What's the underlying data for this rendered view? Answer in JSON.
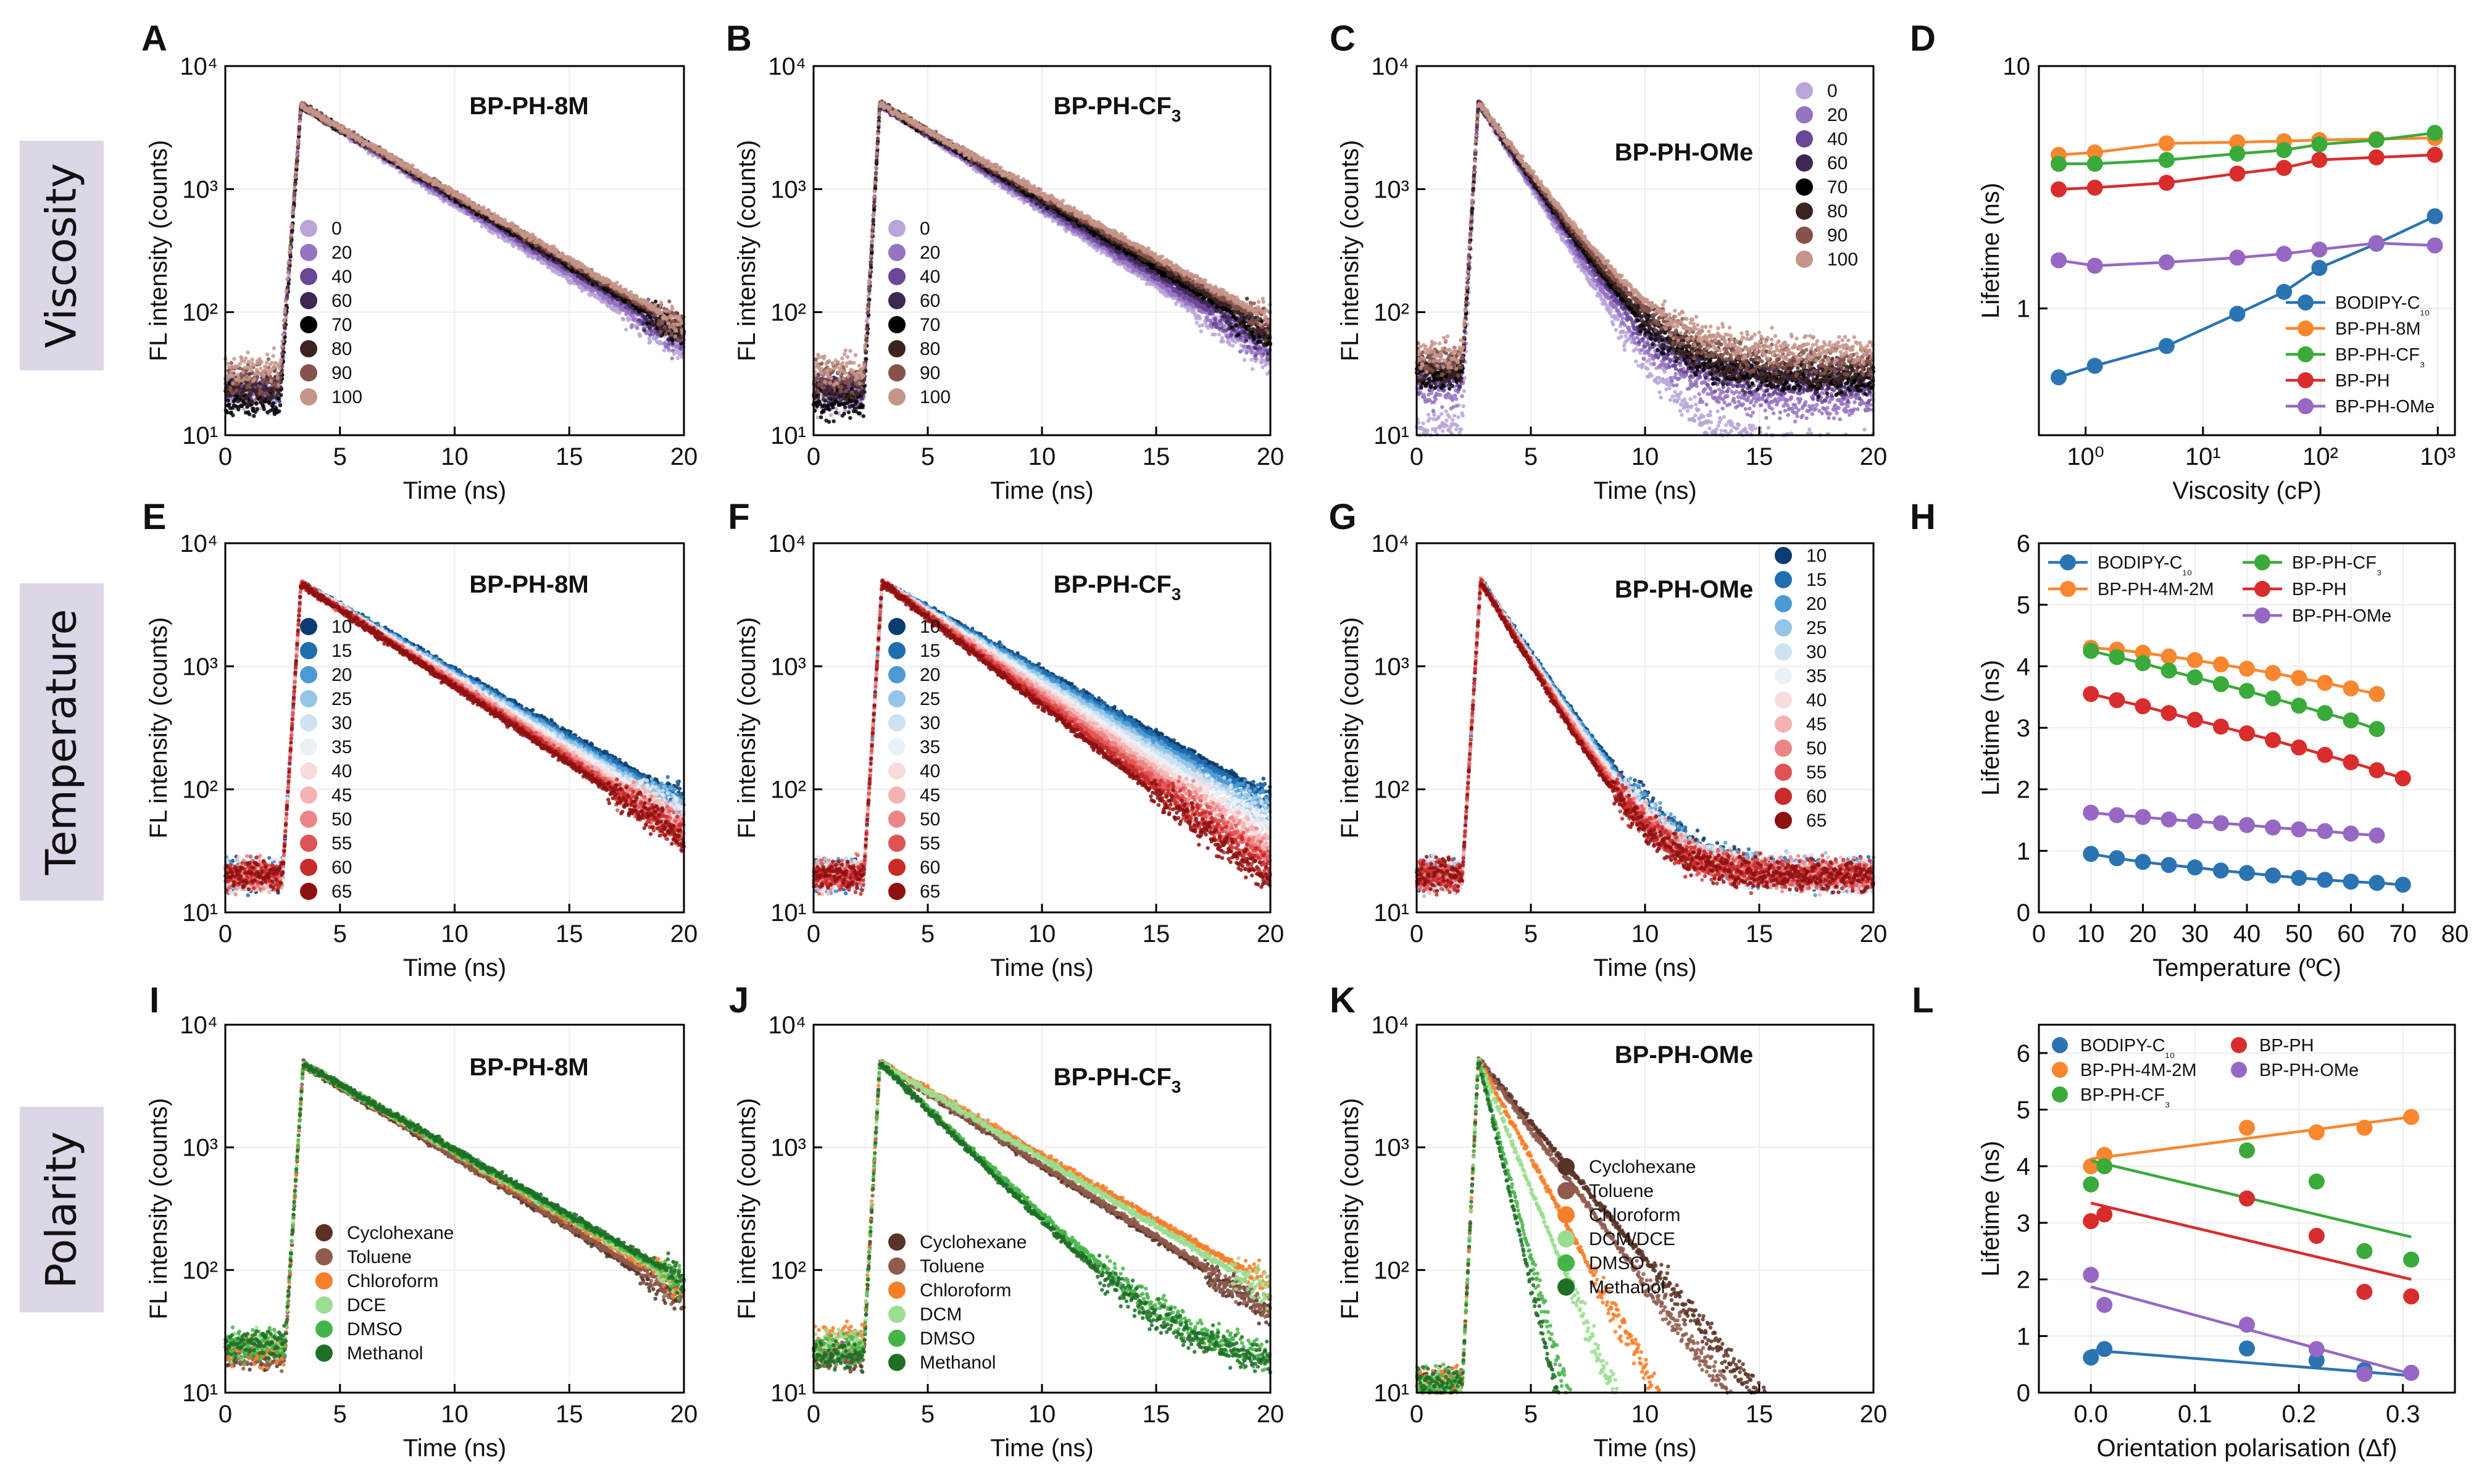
{
  "row_labels": [
    "Viscosity",
    "Temperature",
    "Polarity"
  ],
  "palettes": {
    "viscosity": [
      "#b9a5d8",
      "#9774c2",
      "#6a4799",
      "#3d2753",
      "#000000",
      "#3b231f",
      "#86524b",
      "#c6958a"
    ],
    "temperature": [
      "#0b3c6f",
      "#1f6eb0",
      "#4c9ad4",
      "#94c6e8",
      "#cfe2f1",
      "#eaf1f7",
      "#f8dcdc",
      "#f4b3b3",
      "#ec8585",
      "#e05353",
      "#c92a2a",
      "#8d1111"
    ],
    "polarity": [
      "#5a3226",
      "#8f5b4c",
      "#f77f2a",
      "#9bde91",
      "#46b549",
      "#1f6f27"
    ],
    "lifetime": {
      "BODIPY-C10": "#2b74b3",
      "BP-PH-8M": "#f8872f",
      "BP-PH-4M-2M": "#f8872f",
      "BP-PH-CF3": "#3aaa3a",
      "BP-PH": "#d92c2c",
      "BP-PH-OMe": "#9668c3"
    }
  },
  "chart_data": [
    {
      "panel": "A",
      "type": "scatter",
      "title": "BP-PH-8M",
      "xlabel": "Time (ns)",
      "ylabel": "FL intensity (counts)",
      "yscale": "log",
      "xlim": [
        0,
        20
      ],
      "ylim": [
        10,
        10000
      ],
      "xticks": [
        "0",
        "5",
        "10",
        "15",
        "20"
      ],
      "yticks": [
        "10¹",
        "10²",
        "10³",
        "10⁴"
      ],
      "legend_title": "",
      "legend": [
        "0",
        "20",
        "40",
        "60",
        "70",
        "80",
        "90",
        "100"
      ],
      "palette": "viscosity",
      "rise_ns": 2.4,
      "peak_ns": 3.3,
      "peak": 4800,
      "baseline": [
        20,
        22,
        24,
        24,
        18,
        24,
        30,
        35
      ],
      "decay_tau_ns": [
        3.6,
        3.7,
        3.8,
        3.85,
        3.9,
        3.95,
        4.0,
        4.05
      ],
      "tail_floor": 0
    },
    {
      "panel": "B",
      "type": "scatter",
      "title": "BP-PH-CF3",
      "xlabel": "Time (ns)",
      "ylabel": "FL intensity (counts)",
      "yscale": "log",
      "xlim": [
        0,
        20
      ],
      "ylim": [
        10,
        10000
      ],
      "xticks": [
        "0",
        "5",
        "10",
        "15",
        "20"
      ],
      "yticks": [
        "10¹",
        "10²",
        "10³",
        "10⁴"
      ],
      "legend": [
        "0",
        "20",
        "40",
        "60",
        "70",
        "80",
        "90",
        "100"
      ],
      "palette": "viscosity",
      "rise_ns": 2.2,
      "peak_ns": 2.9,
      "peak": 4900,
      "baseline": [
        20,
        22,
        24,
        24,
        18,
        24,
        30,
        35
      ],
      "decay_tau_ns": [
        3.55,
        3.65,
        3.75,
        3.85,
        3.95,
        4.05,
        4.15,
        4.25
      ],
      "tail_floor": 0
    },
    {
      "panel": "C",
      "type": "scatter",
      "title": "BP-PH-OMe",
      "xlabel": "Time (ns)",
      "ylabel": "FL intensity (counts)",
      "yscale": "log",
      "xlim": [
        0,
        20
      ],
      "ylim": [
        10,
        10000
      ],
      "xticks": [
        "0",
        "5",
        "10",
        "15",
        "20"
      ],
      "yticks": [
        "10¹",
        "10²",
        "10³",
        "10⁴"
      ],
      "legend": [
        "0",
        "20",
        "40",
        "60",
        "70",
        "80",
        "90",
        "100"
      ],
      "palette": "viscosity",
      "rise_ns": 2.0,
      "peak_ns": 2.7,
      "peak": 5000,
      "baseline": [
        12,
        22,
        30,
        32,
        30,
        35,
        40,
        45
      ],
      "decay_tau_ns": [
        1.45,
        1.5,
        1.55,
        1.6,
        1.62,
        1.65,
        1.7,
        1.75
      ],
      "tail_floor": [
        8,
        18,
        25,
        28,
        28,
        32,
        40,
        48
      ]
    },
    {
      "panel": "D",
      "type": "line",
      "xlabel": "Viscosity (cP)",
      "ylabel": "Lifetime (ns)",
      "xscale": "log",
      "yscale": "log",
      "xlim": [
        0.4,
        1400
      ],
      "ylim": [
        0.3,
        10
      ],
      "xticks": [
        {
          "v": 1,
          "t": "10⁰"
        },
        {
          "v": 10,
          "t": "10¹"
        },
        {
          "v": 100,
          "t": "10²"
        },
        {
          "v": 1000,
          "t": "10³"
        }
      ],
      "yticks": [
        {
          "v": 1,
          "t": "1"
        },
        {
          "v": 10,
          "t": "10"
        }
      ],
      "x": [
        0.59,
        1.2,
        4.9,
        19.6,
        49,
        98,
        300,
        945
      ],
      "series": [
        {
          "name": "BODIPY-C10",
          "label": "BODIPY-C₁₀",
          "values": [
            0.52,
            0.58,
            0.7,
            0.95,
            1.17,
            1.47,
            1.85,
            2.4
          ]
        },
        {
          "name": "BP-PH-8M",
          "label": "BP-PH-8M",
          "values": [
            4.3,
            4.4,
            4.8,
            4.85,
            4.9,
            4.95,
            5.0,
            5.05
          ]
        },
        {
          "name": "BP-PH-CF3",
          "label": "BP-PH-CF₃",
          "values": [
            3.95,
            3.95,
            4.1,
            4.35,
            4.5,
            4.75,
            4.95,
            5.3
          ]
        },
        {
          "name": "BP-PH",
          "label": "BP-PH",
          "values": [
            3.1,
            3.15,
            3.3,
            3.6,
            3.8,
            4.1,
            4.2,
            4.3
          ]
        },
        {
          "name": "BP-PH-OMe",
          "label": "BP-PH-OMe",
          "values": [
            1.58,
            1.5,
            1.55,
            1.62,
            1.68,
            1.75,
            1.86,
            1.82
          ]
        }
      ]
    },
    {
      "panel": "E",
      "type": "scatter",
      "title": "BP-PH-8M",
      "xlabel": "Time (ns)",
      "ylabel": "FL intensity (counts)",
      "yscale": "log",
      "xlim": [
        0,
        20
      ],
      "ylim": [
        10,
        10000
      ],
      "xticks": [
        "0",
        "5",
        "10",
        "15",
        "20"
      ],
      "yticks": [
        "10¹",
        "10²",
        "10³",
        "10⁴"
      ],
      "legend": [
        "10",
        "15",
        "20",
        "25",
        "30",
        "35",
        "40",
        "45",
        "50",
        "55",
        "60",
        "65"
      ],
      "palette": "temperature",
      "rise_ns": 2.5,
      "peak_ns": 3.3,
      "peak": 4700,
      "baseline": [
        20,
        20,
        20,
        20,
        20,
        20,
        20,
        20,
        20,
        20,
        20,
        20
      ],
      "decay_tau_ns": [
        4.15,
        4.07,
        4.0,
        3.93,
        3.86,
        3.8,
        3.74,
        3.68,
        3.62,
        3.57,
        3.52,
        3.47
      ],
      "tail_floor": 0
    },
    {
      "panel": "F",
      "type": "scatter",
      "title": "BP-PH-CF3",
      "xlabel": "Time (ns)",
      "ylabel": "FL intensity (counts)",
      "yscale": "log",
      "xlim": [
        0,
        20
      ],
      "ylim": [
        10,
        10000
      ],
      "xticks": [
        "0",
        "5",
        "10",
        "15",
        "20"
      ],
      "yticks": [
        "10¹",
        "10²",
        "10³",
        "10⁴"
      ],
      "legend": [
        "10",
        "15",
        "20",
        "25",
        "30",
        "35",
        "40",
        "45",
        "50",
        "55",
        "60",
        "65"
      ],
      "palette": "temperature",
      "rise_ns": 2.2,
      "peak_ns": 3.0,
      "peak": 4800,
      "baseline": [
        20,
        20,
        20,
        20,
        20,
        20,
        20,
        20,
        20,
        20,
        20,
        20
      ],
      "decay_tau_ns": [
        4.25,
        4.15,
        4.02,
        3.9,
        3.78,
        3.66,
        3.55,
        3.44,
        3.33,
        3.23,
        3.13,
        3.03
      ],
      "tail_floor": 0
    },
    {
      "panel": "G",
      "type": "scatter",
      "title": "BP-PH-OMe",
      "xlabel": "Time (ns)",
      "ylabel": "FL intensity (counts)",
      "yscale": "log",
      "xlim": [
        0,
        20
      ],
      "ylim": [
        10,
        10000
      ],
      "xticks": [
        "0",
        "5",
        "10",
        "15",
        "20"
      ],
      "yticks": [
        "10¹",
        "10²",
        "10³",
        "10⁴"
      ],
      "legend": [
        "10",
        "15",
        "20",
        "25",
        "30",
        "35",
        "40",
        "45",
        "50",
        "55",
        "60",
        "65"
      ],
      "palette": "temperature",
      "rise_ns": 2.0,
      "peak_ns": 2.8,
      "peak": 4900,
      "baseline": [
        20,
        20,
        20,
        20,
        20,
        20,
        20,
        20,
        20,
        20,
        20,
        20
      ],
      "decay_tau_ns": [
        1.62,
        1.6,
        1.58,
        1.56,
        1.54,
        1.52,
        1.5,
        1.48,
        1.46,
        1.44,
        1.42,
        1.4
      ],
      "tail_floor": [
        20,
        20,
        20,
        20,
        20,
        20,
        20,
        20,
        20,
        20,
        20,
        20
      ]
    },
    {
      "panel": "H",
      "type": "line",
      "xlabel": "Temperature (ºC)",
      "ylabel": "Lifetime (ns)",
      "xscale": "linear",
      "yscale": "linear",
      "xlim": [
        0,
        80
      ],
      "ylim": [
        0,
        6
      ],
      "xticks": [
        {
          "v": 0,
          "t": "0"
        },
        {
          "v": 10,
          "t": "10"
        },
        {
          "v": 20,
          "t": "20"
        },
        {
          "v": 30,
          "t": "30"
        },
        {
          "v": 40,
          "t": "40"
        },
        {
          "v": 50,
          "t": "50"
        },
        {
          "v": 60,
          "t": "60"
        },
        {
          "v": 70,
          "t": "70"
        },
        {
          "v": 80,
          "t": "80"
        }
      ],
      "yticks": [
        {
          "v": 0,
          "t": "0"
        },
        {
          "v": 1,
          "t": "1"
        },
        {
          "v": 2,
          "t": "2"
        },
        {
          "v": 3,
          "t": "3"
        },
        {
          "v": 4,
          "t": "4"
        },
        {
          "v": 5,
          "t": "5"
        },
        {
          "v": 6,
          "t": "6"
        }
      ],
      "series": [
        {
          "name": "BODIPY-C10",
          "label": "BODIPY-C₁₀",
          "x": [
            10,
            15,
            20,
            25,
            30,
            35,
            40,
            45,
            50,
            55,
            60,
            65,
            70
          ],
          "values": [
            0.95,
            0.88,
            0.82,
            0.77,
            0.73,
            0.68,
            0.64,
            0.6,
            0.56,
            0.53,
            0.5,
            0.48,
            0.45
          ]
        },
        {
          "name": "BP-PH-4M-2M",
          "label": "BP-PH-4M-2M",
          "x": [
            10,
            15,
            20,
            25,
            30,
            35,
            40,
            45,
            50,
            55,
            60,
            65
          ],
          "values": [
            4.3,
            4.27,
            4.22,
            4.16,
            4.1,
            4.03,
            3.96,
            3.89,
            3.81,
            3.73,
            3.64,
            3.55
          ]
        },
        {
          "name": "BP-PH-CF3",
          "label": "BP-PH-CF₃",
          "x": [
            10,
            15,
            20,
            25,
            30,
            35,
            40,
            45,
            50,
            55,
            60,
            65
          ],
          "values": [
            4.25,
            4.15,
            4.05,
            3.93,
            3.82,
            3.71,
            3.6,
            3.48,
            3.36,
            3.24,
            3.12,
            2.98
          ]
        },
        {
          "name": "BP-PH",
          "label": "BP-PH",
          "x": [
            10,
            15,
            20,
            25,
            30,
            35,
            40,
            45,
            50,
            55,
            60,
            65,
            70
          ],
          "values": [
            3.55,
            3.45,
            3.35,
            3.24,
            3.13,
            3.02,
            2.91,
            2.8,
            2.68,
            2.56,
            2.44,
            2.31,
            2.18
          ]
        },
        {
          "name": "BP-PH-OMe",
          "label": "BP-PH-OMe",
          "x": [
            10,
            15,
            20,
            25,
            30,
            35,
            40,
            45,
            50,
            55,
            60,
            65
          ],
          "values": [
            1.62,
            1.58,
            1.55,
            1.51,
            1.48,
            1.45,
            1.42,
            1.38,
            1.35,
            1.32,
            1.28,
            1.25
          ]
        }
      ]
    },
    {
      "panel": "I",
      "type": "scatter",
      "title": "BP-PH-8M",
      "xlabel": "Time (ns)",
      "ylabel": "FL intensity (counts)",
      "yscale": "log",
      "xlim": [
        0,
        20
      ],
      "ylim": [
        10,
        10000
      ],
      "xticks": [
        "0",
        "5",
        "10",
        "15",
        "20"
      ],
      "yticks": [
        "10¹",
        "10²",
        "10³",
        "10⁴"
      ],
      "legend": [
        "Cyclohexane",
        "Toluene",
        "Chloroform",
        "DCE",
        "DMSO",
        "Methanol"
      ],
      "palette": "polarity",
      "rise_ns": 2.6,
      "peak_ns": 3.4,
      "peak": 4800,
      "baseline": [
        20,
        20,
        22,
        25,
        25,
        25
      ],
      "decay_tau_ns": [
        3.75,
        3.8,
        3.95,
        4.0,
        4.05,
        4.1
      ],
      "tail_floor": 0
    },
    {
      "panel": "J",
      "type": "scatter",
      "title": "BP-PH-CF3",
      "xlabel": "Time (ns)",
      "ylabel": "FL intensity (counts)",
      "yscale": "log",
      "xlim": [
        0,
        20
      ],
      "ylim": [
        10,
        10000
      ],
      "xticks": [
        "0",
        "5",
        "10",
        "15",
        "20"
      ],
      "yticks": [
        "10¹",
        "10²",
        "10³",
        "10⁴"
      ],
      "legend": [
        "Cyclohexane",
        "Toluene",
        "Chloroform",
        "DCM",
        "DMSO",
        "Methanol"
      ],
      "palette": "polarity",
      "rise_ns": 2.2,
      "peak_ns": 2.9,
      "peak": 4900,
      "baseline": [
        20,
        20,
        28,
        25,
        22,
        20
      ],
      "decay_tau_ns": [
        3.65,
        3.7,
        4.1,
        3.95,
        2.45,
        2.35
      ],
      "tail_floor": [
        0,
        0,
        0,
        0,
        15,
        15
      ]
    },
    {
      "panel": "K",
      "type": "scatter",
      "title": "BP-PH-OMe",
      "xlabel": "Time (ns)",
      "ylabel": "FL intensity (counts)",
      "yscale": "log",
      "xlim": [
        0,
        20
      ],
      "ylim": [
        10,
        10000
      ],
      "xticks": [
        "0",
        "5",
        "10",
        "15",
        "20"
      ],
      "yticks": [
        "10¹",
        "10²",
        "10³",
        "10⁴"
      ],
      "legend": [
        "Cyclohexane",
        "Toluene",
        "Chloroform",
        "DCM/DCE",
        "DMSO",
        "Methanol"
      ],
      "palette": "polarity",
      "rise_ns": 2.0,
      "peak_ns": 2.7,
      "peak": 5200,
      "baseline": [
        12,
        12,
        12,
        12,
        12,
        12
      ],
      "decay_tau_ns": [
        1.95,
        1.75,
        1.25,
        0.95,
        0.62,
        0.55
      ],
      "tail_floor": 0
    },
    {
      "panel": "L",
      "type": "scatter",
      "xlabel": "Orientation polarisation (Δf)",
      "ylabel": "Lifetime (ns)",
      "xscale": "linear",
      "yscale": "linear",
      "xlim": [
        -0.05,
        0.35
      ],
      "ylim": [
        0,
        6.5
      ],
      "xticks": [
        {
          "v": 0,
          "t": "0.0"
        },
        {
          "v": 0.1,
          "t": "0.1"
        },
        {
          "v": 0.2,
          "t": "0.2"
        },
        {
          "v": 0.3,
          "t": "0.3"
        }
      ],
      "yticks": [
        {
          "v": 0,
          "t": "0"
        },
        {
          "v": 1,
          "t": "1"
        },
        {
          "v": 2,
          "t": "2"
        },
        {
          "v": 3,
          "t": "3"
        },
        {
          "v": 4,
          "t": "4"
        },
        {
          "v": 5,
          "t": "5"
        },
        {
          "v": 6,
          "t": "6"
        }
      ],
      "series": [
        {
          "name": "BODIPY-C10",
          "label": "BODIPY-C₁₀",
          "x": [
            0.0,
            0.013,
            0.15,
            0.217,
            0.263,
            0.308
          ],
          "values": [
            0.62,
            0.77,
            0.78,
            0.57,
            0.4,
            0.35
          ],
          "fit": [
            0.75,
            0.3
          ]
        },
        {
          "name": "BP-PH-4M-2M",
          "label": "BP-PH-4M-2M",
          "x": [
            0.0,
            0.013,
            0.15,
            0.217,
            0.263,
            0.308
          ],
          "values": [
            4.0,
            4.2,
            4.68,
            4.6,
            4.68,
            4.87
          ],
          "fit": [
            4.13,
            4.87
          ]
        },
        {
          "name": "BP-PH-CF3",
          "label": "BP-PH-CF₃",
          "x": [
            0.0,
            0.013,
            0.15,
            0.217,
            0.263,
            0.308
          ],
          "values": [
            3.68,
            4.0,
            4.28,
            3.73,
            2.5,
            2.35
          ],
          "fit": [
            4.1,
            2.75
          ]
        },
        {
          "name": "BP-PH",
          "label": "BP-PH",
          "x": [
            0.0,
            0.013,
            0.15,
            0.217,
            0.263,
            0.308
          ],
          "values": [
            3.03,
            3.15,
            3.43,
            2.77,
            1.78,
            1.7
          ],
          "fit": [
            3.35,
            2.0
          ]
        },
        {
          "name": "BP-PH-OMe",
          "label": "BP-PH-OMe",
          "x": [
            0.0,
            0.013,
            0.15,
            0.217,
            0.263,
            0.308
          ],
          "values": [
            2.08,
            1.55,
            1.2,
            0.77,
            0.33,
            0.35
          ],
          "fit": [
            1.87,
            0.33
          ]
        }
      ]
    }
  ]
}
